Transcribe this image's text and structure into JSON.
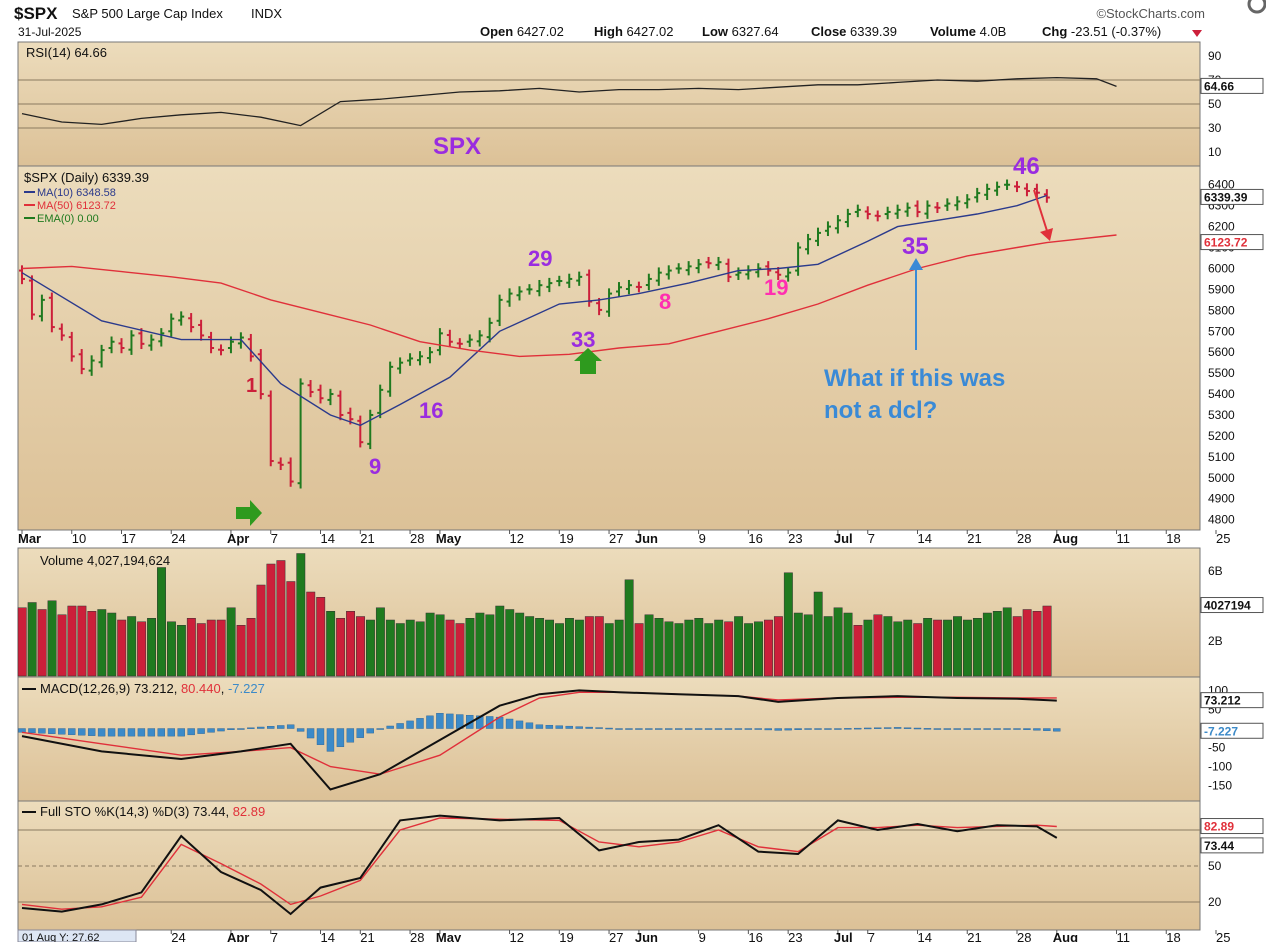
{
  "header": {
    "symbol": "$SPX",
    "name": "S&P 500 Large Cap Index",
    "exchange": "INDX",
    "date": "31-Jul-2025",
    "brand": "©StockCharts.com",
    "quote": {
      "open": "6427.02",
      "high": "6427.02",
      "low": "6327.64",
      "close": "6339.39",
      "volume": "4.0B",
      "chg": "-23.51 (-0.37%)"
    }
  },
  "colors": {
    "panel_bg": "#e4cfa7",
    "up": "#1f7a1f",
    "down": "#cc1f3a",
    "ma10": "#2b3a8c",
    "ma50": "#e0303a",
    "annotation_purple": "#9a2ce0",
    "annotation_pink": "#ff2fb0",
    "annotation_blue": "#3a8ad6",
    "arrow_green": "#2e9a1e",
    "macd_hist": "#3c8ac8"
  },
  "chart_data": [
    {
      "type": "line",
      "panel": "rsi",
      "legend": "RSI(14) 64.66",
      "current_label": "64.66",
      "y_ticks": [
        "90",
        "70",
        "50",
        "30",
        "10"
      ],
      "levels": [
        70,
        50,
        30
      ],
      "ylim": [
        0,
        100
      ],
      "x_index": [
        0,
        4,
        8,
        12,
        16,
        20,
        24,
        28,
        32,
        36,
        40,
        44,
        48,
        52,
        56,
        60,
        64,
        68,
        72,
        76,
        80,
        84,
        88,
        92,
        96,
        100,
        104,
        108,
        110
      ],
      "values": [
        42,
        35,
        33,
        38,
        41,
        43,
        39,
        32,
        52,
        54,
        57,
        60,
        61,
        63,
        60,
        62,
        62,
        63,
        62,
        64,
        66,
        66,
        68,
        70,
        69,
        71,
        72,
        71,
        64.66
      ]
    },
    {
      "type": "candlestick",
      "panel": "price",
      "title": "SPX",
      "legend": [
        {
          "label": "$SPX (Daily) 6339.39",
          "color": "#1f7a1f"
        },
        {
          "label": "MA(10) 6348.58",
          "color": "#2b3a8c"
        },
        {
          "label": "MA(50) 6123.72",
          "color": "#e0303a"
        },
        {
          "label": "EMA(0) 0.00",
          "color": "#1f7a1f"
        }
      ],
      "current_labels": {
        "close": "6339.39",
        "ma50": "6123.72"
      },
      "ylim": [
        4760,
        6480
      ],
      "y_ticks": [
        "6400",
        "6300",
        "6200",
        "6100",
        "6000",
        "5900",
        "5800",
        "5700",
        "5600",
        "5500",
        "5400",
        "5300",
        "5200",
        "5100",
        "5000",
        "4900",
        "4800"
      ],
      "x_ticks": [
        {
          "label": "Mar",
          "i": 0,
          "bold": true
        },
        {
          "label": "10",
          "i": 5
        },
        {
          "label": "17",
          "i": 10
        },
        {
          "label": "24",
          "i": 15
        },
        {
          "label": "Apr",
          "i": 21,
          "bold": true
        },
        {
          "label": "7",
          "i": 25
        },
        {
          "label": "14",
          "i": 30
        },
        {
          "label": "21",
          "i": 34
        },
        {
          "label": "28",
          "i": 39
        },
        {
          "label": "May",
          "i": 42,
          "bold": true
        },
        {
          "label": "12",
          "i": 49
        },
        {
          "label": "19",
          "i": 54
        },
        {
          "label": "27",
          "i": 59
        },
        {
          "label": "Jun",
          "i": 62,
          "bold": true
        },
        {
          "label": "9",
          "i": 68
        },
        {
          "label": "16",
          "i": 73
        },
        {
          "label": "23",
          "i": 77
        },
        {
          "label": "Jul",
          "i": 82,
          "bold": true
        },
        {
          "label": "7",
          "i": 85
        },
        {
          "label": "14",
          "i": 90
        },
        {
          "label": "21",
          "i": 95
        },
        {
          "label": "28",
          "i": 100
        },
        {
          "label": "Aug",
          "i": 104,
          "bold": true
        },
        {
          "label": "11",
          "i": 110
        },
        {
          "label": "18",
          "i": 115
        },
        {
          "label": "25",
          "i": 120
        }
      ],
      "close": [
        5950,
        5780,
        5850,
        5720,
        5680,
        5580,
        5520,
        5560,
        5610,
        5650,
        5620,
        5680,
        5640,
        5660,
        5690,
        5760,
        5770,
        5720,
        5680,
        5620,
        5610,
        5650,
        5670,
        5580,
        5400,
        5080,
        5062,
        4982,
        5450,
        5410,
        5380,
        5400,
        5300,
        5280,
        5170,
        5300,
        5420,
        5530,
        5550,
        5570,
        5580,
        5600,
        5690,
        5650,
        5640,
        5660,
        5680,
        5740,
        5850,
        5880,
        5890,
        5900,
        5920,
        5930,
        5940,
        5950,
        5960,
        5842,
        5802,
        5880,
        5910,
        5920,
        5911,
        5950,
        5980,
        5990,
        6000,
        6010,
        6020,
        6025,
        6030,
        5960,
        5980,
        5990,
        6000,
        5990,
        5970,
        5980,
        6100,
        6140,
        6170,
        6200,
        6230,
        6260,
        6280,
        6260,
        6250,
        6270,
        6280,
        6290,
        6270,
        6300,
        6290,
        6310,
        6320,
        6330,
        6360,
        6380,
        6390,
        6400,
        6390,
        6370,
        6362,
        6339
      ],
      "ma10_x_index": [
        0,
        8,
        16,
        22,
        26,
        31,
        34,
        38,
        43,
        48,
        54,
        58,
        62,
        67,
        72,
        76,
        80,
        85,
        88,
        92,
        96,
        100,
        103
      ],
      "ma10": [
        5980,
        5750,
        5660,
        5660,
        5450,
        5300,
        5250,
        5350,
        5480,
        5700,
        5830,
        5850,
        5880,
        5930,
        5990,
        6000,
        6020,
        6130,
        6200,
        6230,
        6260,
        6300,
        6348.58
      ],
      "ma50_x_index": [
        0,
        5,
        10,
        15,
        20,
        25,
        30,
        35,
        40,
        45,
        50,
        55,
        60,
        65,
        70,
        75,
        80,
        85,
        90,
        95,
        100,
        103,
        110
      ],
      "ma50": [
        6000,
        6010,
        5985,
        5960,
        5930,
        5850,
        5790,
        5730,
        5650,
        5610,
        5580,
        5590,
        5620,
        5640,
        5700,
        5760,
        5830,
        5920,
        6000,
        6060,
        6100,
        6123.72,
        6160
      ]
    },
    {
      "type": "bar",
      "panel": "volume",
      "legend": "Volume 4,027,194,624",
      "current_label": "4027194",
      "y_ticks": [
        "6B",
        "2B"
      ],
      "ylim": [
        0,
        7.2
      ],
      "unit": "billion shares",
      "values": [
        3.9,
        4.2,
        3.8,
        4.3,
        3.5,
        4.0,
        4.0,
        3.7,
        3.8,
        3.6,
        3.2,
        3.4,
        3.1,
        3.3,
        6.2,
        3.1,
        2.9,
        3.3,
        3.0,
        3.2,
        3.2,
        3.9,
        2.9,
        3.3,
        5.2,
        6.4,
        6.6,
        5.4,
        7.0,
        4.8,
        4.5,
        3.7,
        3.3,
        3.7,
        3.4,
        3.2,
        3.9,
        3.2,
        3.0,
        3.2,
        3.1,
        3.6,
        3.5,
        3.2,
        3.0,
        3.3,
        3.6,
        3.5,
        4.0,
        3.8,
        3.6,
        3.4,
        3.3,
        3.2,
        3.0,
        3.3,
        3.2,
        3.4,
        3.4,
        3.0,
        3.2,
        5.5,
        3.0,
        3.5,
        3.3,
        3.1,
        3.0,
        3.2,
        3.3,
        3.0,
        3.2,
        3.1,
        3.4,
        3.0,
        3.1,
        3.2,
        3.4,
        5.9,
        3.6,
        3.5,
        4.8,
        3.4,
        3.9,
        3.6,
        2.9,
        3.2,
        3.5,
        3.4,
        3.1,
        3.2,
        3.0,
        3.3,
        3.2,
        3.2,
        3.4,
        3.2,
        3.3,
        3.6,
        3.7,
        3.9,
        3.4,
        3.8,
        3.7,
        4.0
      ],
      "up": [
        0,
        1,
        0,
        1,
        0,
        0,
        0,
        0,
        1,
        1,
        0,
        1,
        0,
        1,
        1,
        1,
        1,
        0,
        0,
        0,
        0,
        1,
        0,
        0,
        0,
        0,
        0,
        0,
        1,
        0,
        0,
        1,
        0,
        0,
        0,
        1,
        1,
        1,
        1,
        1,
        1,
        1,
        1,
        0,
        0,
        1,
        1,
        1,
        1,
        1,
        1,
        1,
        1,
        1,
        1,
        1,
        1,
        0,
        0,
        1,
        1,
        1,
        0,
        1,
        1,
        1,
        1,
        1,
        1,
        1,
        1,
        0,
        1,
        1,
        1,
        0,
        0,
        1,
        1,
        1,
        1,
        1,
        1,
        1,
        0,
        1,
        0,
        1,
        1,
        1,
        0,
        1,
        0,
        1,
        1,
        1,
        1,
        1,
        1,
        1,
        0,
        0,
        0,
        0
      ]
    },
    {
      "type": "line",
      "panel": "macd",
      "legend": {
        "prefix": "MACD(12,26,9)",
        "macd": "73.212",
        "signal": "80.440",
        "hist": "-7.227"
      },
      "current_labels": {
        "macd": "73.212",
        "hist": "-7.227"
      },
      "y_ticks": [
        "100",
        "50",
        "-50",
        "-100",
        "-150"
      ],
      "ylim": [
        -185,
        130
      ],
      "x_index": [
        0,
        8,
        16,
        22,
        27,
        31,
        36,
        42,
        48,
        52,
        56,
        60,
        66,
        72,
        76,
        82,
        88,
        94,
        100,
        104
      ],
      "macd": [
        -20,
        -60,
        -80,
        -60,
        -40,
        -160,
        -120,
        -30,
        60,
        90,
        100,
        95,
        90,
        85,
        70,
        80,
        85,
        80,
        78,
        73.212
      ],
      "signal": [
        -10,
        -40,
        -70,
        -60,
        -50,
        -100,
        -120,
        -70,
        30,
        80,
        95,
        95,
        90,
        85,
        75,
        80,
        82,
        82,
        80,
        80.44
      ],
      "hist": [
        -10,
        -20,
        -20,
        0,
        10,
        -60,
        0,
        40,
        30,
        10,
        5,
        0,
        0,
        0,
        -5,
        0,
        3,
        -2,
        -2,
        -7.227
      ]
    },
    {
      "type": "line",
      "panel": "stochastic",
      "legend": {
        "prefix": "Full STO %K(14,3) %D(3)",
        "k": "73.44",
        "d": "82.89"
      },
      "current_labels": {
        "k": "73.44",
        "d": "82.89"
      },
      "y_ticks": [
        "80",
        "50",
        "20"
      ],
      "levels": [
        80,
        20
      ],
      "ylim": [
        0,
        100
      ],
      "x_index": [
        0,
        4,
        8,
        12,
        16,
        20,
        24,
        27,
        30,
        34,
        38,
        42,
        48,
        54,
        58,
        62,
        66,
        70,
        74,
        78,
        82,
        86,
        90,
        94,
        98,
        102,
        104
      ],
      "k": [
        15,
        12,
        18,
        28,
        75,
        45,
        30,
        10,
        32,
        40,
        88,
        92,
        88,
        90,
        63,
        70,
        72,
        84,
        62,
        60,
        88,
        80,
        85,
        79,
        84,
        83,
        73.44
      ],
      "d": [
        18,
        14,
        16,
        24,
        68,
        52,
        35,
        18,
        25,
        38,
        80,
        90,
        89,
        88,
        70,
        66,
        70,
        80,
        66,
        62,
        82,
        82,
        84,
        82,
        83,
        84,
        82.89
      ]
    }
  ],
  "annotations": {
    "numbers": [
      {
        "text": "29",
        "color": "purple"
      },
      {
        "text": "33",
        "color": "purple"
      },
      {
        "text": "16",
        "color": "purple"
      },
      {
        "text": "9",
        "color": "purple"
      },
      {
        "text": "1",
        "color": "red"
      },
      {
        "text": "8",
        "color": "pink"
      },
      {
        "text": "19",
        "color": "pink"
      },
      {
        "text": "35",
        "color": "purple"
      },
      {
        "text": "46",
        "color": "purple"
      }
    ],
    "note_lines": [
      "What if this was",
      "not a dcl?"
    ]
  },
  "bottom": {
    "hover_text": "01 Aug Y: 27.62"
  }
}
